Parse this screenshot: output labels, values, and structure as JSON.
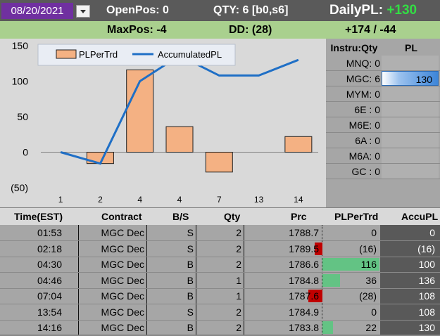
{
  "header": {
    "date": "08/20/2021",
    "openpos_label": "OpenPos: 0",
    "qty_label": "QTY: 6 [b0,s6]",
    "dailypl_label": "DailyPL:",
    "dailypl_value": "+130",
    "maxpos_label": "MaxPos: -4",
    "dd_label": "DD: (28)",
    "range_label": "+174  / -44"
  },
  "chart_data": {
    "type": "bar",
    "categories": [
      "1",
      "2",
      "4",
      "4",
      "7",
      "13",
      "14"
    ],
    "series": [
      {
        "name": "PLPerTrd",
        "type": "bar",
        "values": [
          0,
          -16,
          116,
          36,
          -28,
          0,
          22
        ]
      },
      {
        "name": "AccumulatedPL",
        "type": "line",
        "values": [
          0,
          -16,
          100,
          136,
          108,
          108,
          130
        ]
      }
    ],
    "yticks": [
      "150",
      "100",
      "50",
      "0",
      "(50)"
    ],
    "ylim": [
      -50,
      150
    ],
    "legend": "top",
    "colors": {
      "bar": "#f4b183",
      "bar_border": "#1f1f1f",
      "line": "#1f6fc6"
    }
  },
  "side_panel": {
    "header_instr": "Instru:Qty",
    "header_pl": "PL",
    "rows": [
      {
        "label": "MNQ: 0",
        "pl": ""
      },
      {
        "label": "MGC: 6",
        "pl": "130"
      },
      {
        "label": "MYM: 0",
        "pl": ""
      },
      {
        "label": "6E : 0",
        "pl": ""
      },
      {
        "label": "M6E: 0",
        "pl": ""
      },
      {
        "label": "6A : 0",
        "pl": ""
      },
      {
        "label": "M6A: 0",
        "pl": ""
      },
      {
        "label": "GC : 0",
        "pl": ""
      }
    ]
  },
  "table": {
    "headers": [
      "Time(EST)",
      "Contract",
      "B/S",
      "Qty",
      "Prc",
      "PLPerTrd",
      "AccuPL"
    ],
    "rows": [
      {
        "time": "01:53",
        "contract": "MGC Dec",
        "bs": "S",
        "qty": "2",
        "prc": "1788.7",
        "pl": "0",
        "accu": "0",
        "plv": 0
      },
      {
        "time": "02:18",
        "contract": "MGC Dec",
        "bs": "S",
        "qty": "2",
        "prc": "1789.5",
        "pl": "(16)",
        "accu": "(16)",
        "plv": -16
      },
      {
        "time": "04:30",
        "contract": "MGC Dec",
        "bs": "B",
        "qty": "2",
        "prc": "1786.6",
        "pl": "116",
        "accu": "100",
        "plv": 116
      },
      {
        "time": "04:46",
        "contract": "MGC Dec",
        "bs": "B",
        "qty": "1",
        "prc": "1784.8",
        "pl": "36",
        "accu": "136",
        "plv": 36
      },
      {
        "time": "07:04",
        "contract": "MGC Dec",
        "bs": "B",
        "qty": "1",
        "prc": "1787.6",
        "pl": "(28)",
        "accu": "108",
        "plv": -28
      },
      {
        "time": "13:54",
        "contract": "MGC Dec",
        "bs": "S",
        "qty": "2",
        "prc": "1784.9",
        "pl": "0",
        "accu": "108",
        "plv": 0
      },
      {
        "time": "14:16",
        "contract": "MGC Dec",
        "bs": "B",
        "qty": "2",
        "prc": "1783.8",
        "pl": "22",
        "accu": "130",
        "plv": 22
      }
    ]
  },
  "colors": {
    "accent_purple": "#7030a0",
    "header_green": "#a9d08e",
    "pos_bar": "#63c384",
    "neg_bar": "#c00000",
    "pl_blue": "#3d85d8"
  }
}
